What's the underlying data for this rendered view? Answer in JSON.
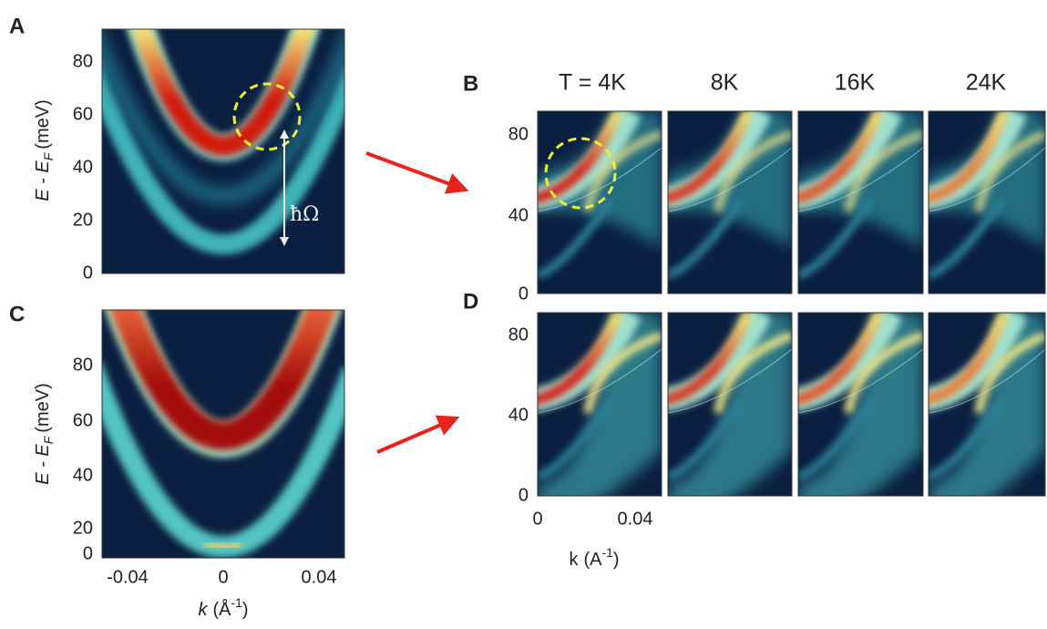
{
  "panel_a": {
    "label": "A",
    "yticks": [
      80,
      60,
      40,
      20,
      0
    ],
    "y_label": {
      "symbol": "E - E",
      "subscript": "F",
      "unit": "(meV)"
    },
    "annotation": "ħΩ"
  },
  "panel_b": {
    "label": "B",
    "temperatures": [
      "T = 4K",
      "8K",
      "16K",
      "24K"
    ],
    "yticks": [
      80,
      40,
      0
    ]
  },
  "panel_c": {
    "label": "C",
    "yticks": [
      80,
      60,
      40,
      20,
      0
    ],
    "xticks": [
      -0.04,
      0,
      0.04
    ],
    "y_label": {
      "symbol": "E - E",
      "subscript": "F",
      "unit": "(meV)"
    },
    "x_label": {
      "variable": "k",
      "unit": "(Å",
      "exponent": "-1",
      "close": ")"
    }
  },
  "panel_d": {
    "label": "D",
    "yticks": [
      80,
      40,
      0
    ],
    "xticks": [
      0,
      0.04
    ],
    "x_label": {
      "variable": "k",
      "unit": "(A",
      "exponent": "-1",
      "close": ")"
    }
  }
}
